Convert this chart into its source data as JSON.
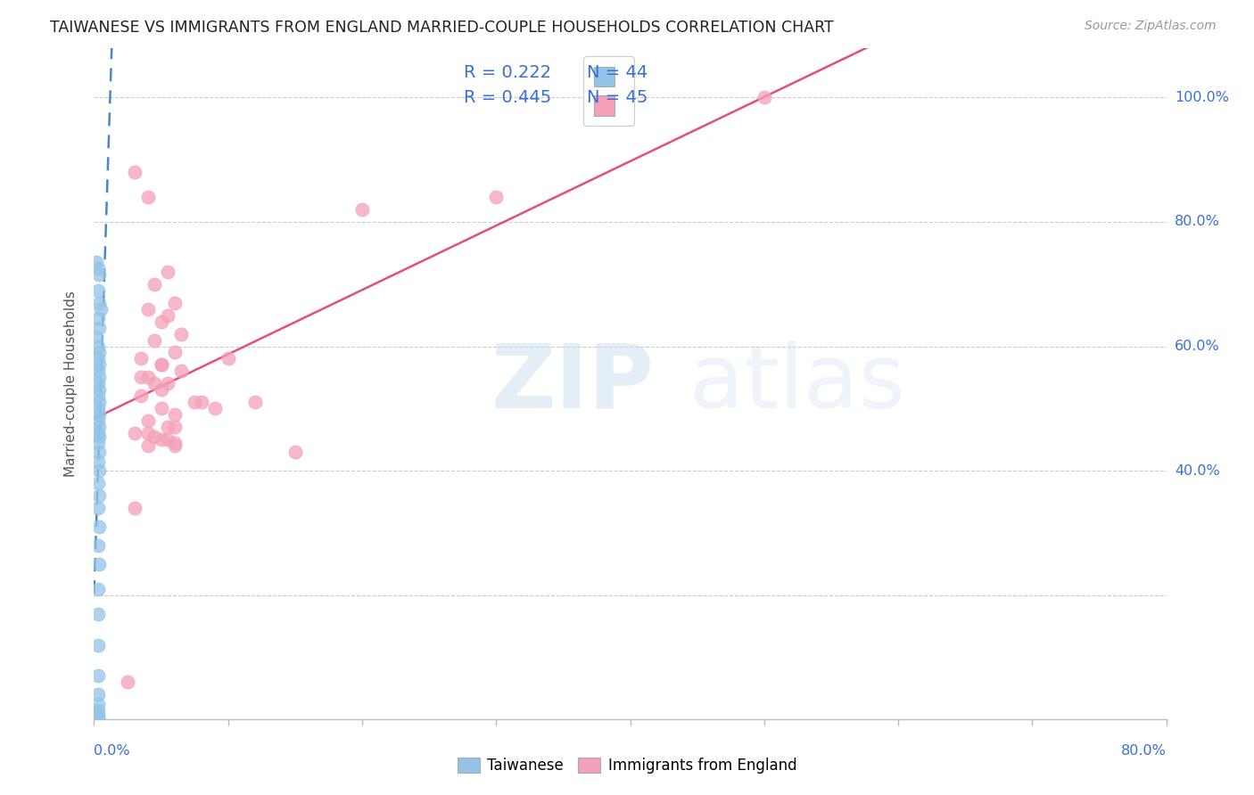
{
  "title": "TAIWANESE VS IMMIGRANTS FROM ENGLAND MARRIED-COUPLE HOUSEHOLDS CORRELATION CHART",
  "source": "Source: ZipAtlas.com",
  "ylabel": "Married-couple Households",
  "xmin": 0.0,
  "xmax": 0.8,
  "ymin": 0.0,
  "ymax": 1.08,
  "legend_r1": "R = 0.222",
  "legend_n1": "N = 44",
  "legend_r2": "R = 0.445",
  "legend_n2": "N = 45",
  "blue_scatter_color": "#93c4e8",
  "pink_scatter_color": "#f4a0b8",
  "blue_line_color": "#4a86c8",
  "pink_line_color": "#e0507a",
  "title_color": "#222222",
  "axis_label_color": "#3a6fd8",
  "legend_text_color": "#3a6fd8",
  "blue_scatter_x": [
    0.002,
    0.003,
    0.004,
    0.003,
    0.004,
    0.005,
    0.003,
    0.004,
    0.002,
    0.003,
    0.004,
    0.003,
    0.004,
    0.003,
    0.004,
    0.003,
    0.004,
    0.003,
    0.004,
    0.003,
    0.004,
    0.003,
    0.004,
    0.003,
    0.004,
    0.003,
    0.004,
    0.003,
    0.004,
    0.003,
    0.004,
    0.003,
    0.004,
    0.003,
    0.004,
    0.003,
    0.003,
    0.003,
    0.003,
    0.003,
    0.003,
    0.003,
    0.003,
    0.003
  ],
  "blue_scatter_y": [
    0.735,
    0.725,
    0.715,
    0.69,
    0.67,
    0.66,
    0.645,
    0.63,
    0.615,
    0.6,
    0.59,
    0.58,
    0.57,
    0.56,
    0.55,
    0.54,
    0.53,
    0.52,
    0.51,
    0.5,
    0.49,
    0.48,
    0.47,
    0.46,
    0.455,
    0.445,
    0.43,
    0.415,
    0.4,
    0.38,
    0.36,
    0.34,
    0.31,
    0.28,
    0.25,
    0.21,
    0.17,
    0.12,
    0.07,
    0.04,
    0.025,
    0.015,
    0.008,
    0.003
  ],
  "pink_scatter_x": [
    0.03,
    0.04,
    0.055,
    0.045,
    0.06,
    0.04,
    0.055,
    0.05,
    0.065,
    0.045,
    0.06,
    0.035,
    0.05,
    0.065,
    0.04,
    0.055,
    0.05,
    0.035,
    0.08,
    0.05,
    0.06,
    0.04,
    0.055,
    0.03,
    0.045,
    0.1,
    0.075,
    0.055,
    0.2,
    0.06,
    0.04,
    0.09,
    0.05,
    0.12,
    0.15,
    0.06,
    0.045,
    0.3,
    0.04,
    0.03,
    0.05,
    0.035,
    0.5,
    0.06,
    0.025
  ],
  "pink_scatter_y": [
    0.88,
    0.84,
    0.72,
    0.7,
    0.67,
    0.66,
    0.65,
    0.64,
    0.62,
    0.61,
    0.59,
    0.58,
    0.57,
    0.56,
    0.55,
    0.54,
    0.53,
    0.52,
    0.51,
    0.5,
    0.49,
    0.48,
    0.47,
    0.46,
    0.455,
    0.58,
    0.51,
    0.45,
    0.82,
    0.47,
    0.44,
    0.5,
    0.45,
    0.51,
    0.43,
    0.44,
    0.54,
    0.84,
    0.46,
    0.34,
    0.57,
    0.55,
    1.0,
    0.445,
    0.06
  ]
}
